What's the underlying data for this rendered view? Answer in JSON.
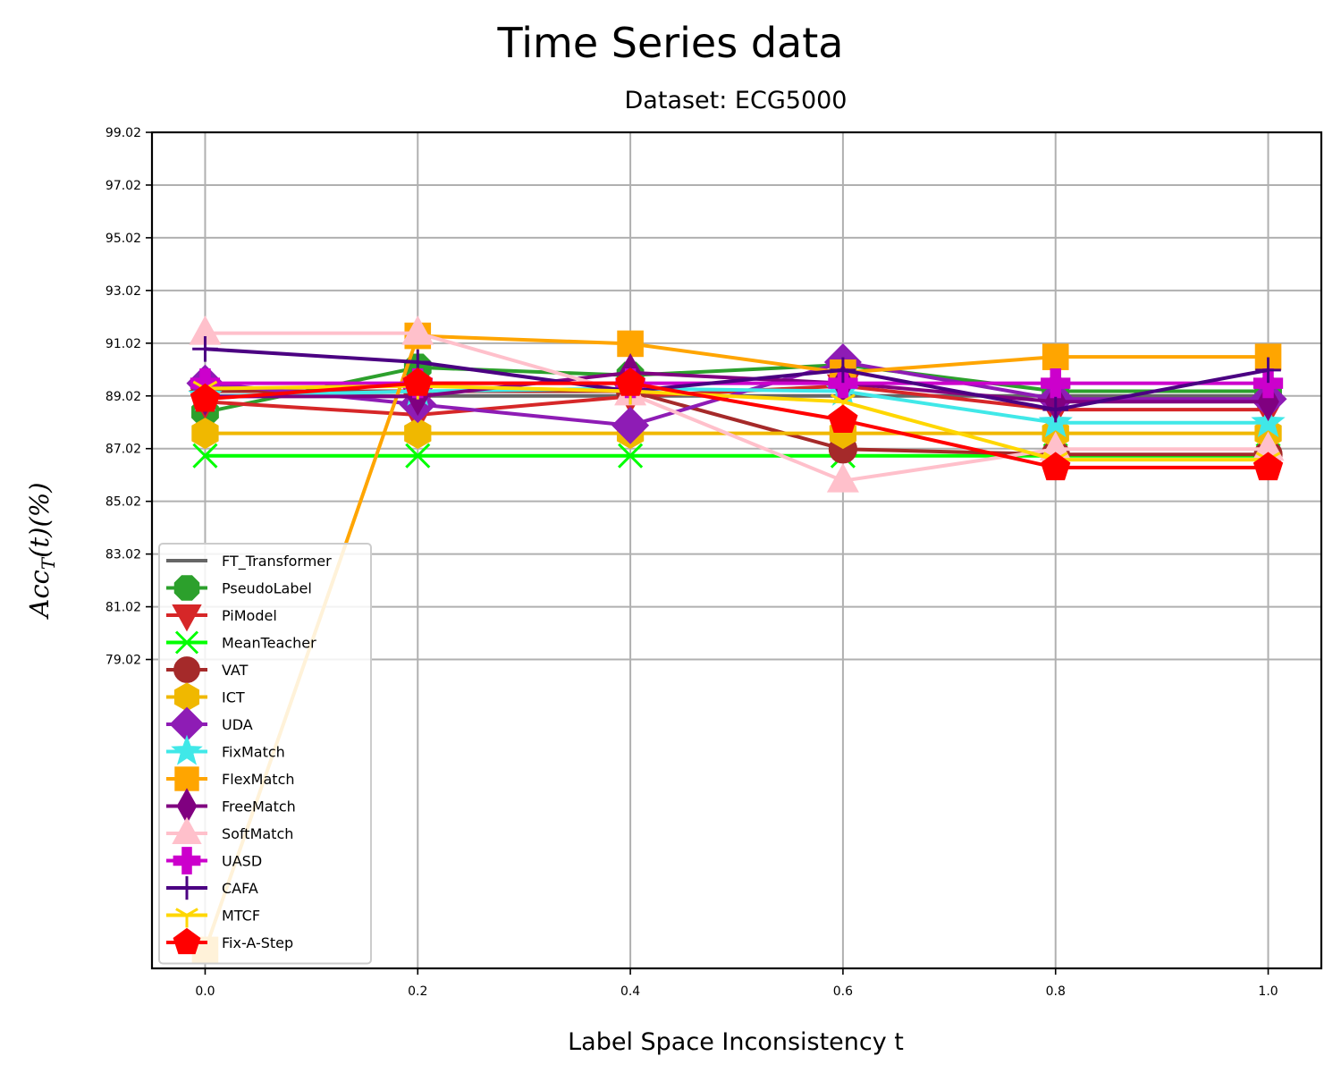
{
  "chart_data": {
    "type": "line",
    "title": "Time Series data",
    "subtitle": "Dataset: ECG5000",
    "xlabel": "Label Space Inconsistency t",
    "ylabel": "Acc_T(t)(%)",
    "x": [
      0.0,
      0.2,
      0.4,
      0.6,
      0.8,
      1.0
    ],
    "x_ticks": [
      "0.0",
      "0.2",
      "0.4",
      "0.6",
      "0.8",
      "1.0"
    ],
    "xlim": [
      -0.05,
      1.05
    ],
    "y_ticks": [
      "79.02",
      "81.02",
      "83.02",
      "85.02",
      "87.02",
      "89.02",
      "91.02",
      "93.02",
      "95.02",
      "97.02",
      "99.02"
    ],
    "ylim": [
      67.3,
      99.02
    ],
    "grid": true,
    "legend_position": "lower-left",
    "series": [
      {
        "name": "FT_Transformer",
        "color": "#666666",
        "marker": "none",
        "values": [
          89.02,
          89.02,
          89.02,
          89.02,
          89.02,
          89.02
        ]
      },
      {
        "name": "PseudoLabel",
        "color": "#2ca02c",
        "marker": "octagon",
        "values": [
          88.4,
          90.1,
          89.8,
          90.2,
          89.2,
          89.2
        ]
      },
      {
        "name": "PiModel",
        "color": "#d62728",
        "marker": "triangle-down",
        "values": [
          88.8,
          88.3,
          89.0,
          89.4,
          88.5,
          88.5
        ]
      },
      {
        "name": "MeanTeacher",
        "color": "#00ff00",
        "marker": "x",
        "values": [
          86.75,
          86.75,
          86.75,
          86.75,
          86.75,
          86.75
        ]
      },
      {
        "name": "VAT",
        "color": "#a52a2a",
        "marker": "circle",
        "values": [
          89.2,
          89.2,
          89.2,
          87.0,
          86.8,
          86.8
        ]
      },
      {
        "name": "ICT",
        "color": "#f0b800",
        "marker": "hexagon",
        "values": [
          87.6,
          87.6,
          87.6,
          87.6,
          87.6,
          87.6
        ]
      },
      {
        "name": "UDA",
        "color": "#8e1cb5",
        "marker": "diamond",
        "values": [
          89.5,
          88.7,
          87.9,
          90.3,
          88.9,
          88.9
        ]
      },
      {
        "name": "FixMatch",
        "color": "#40e8e8",
        "marker": "star",
        "values": [
          89.0,
          89.2,
          89.3,
          89.2,
          88.0,
          88.0
        ]
      },
      {
        "name": "FlexMatch",
        "color": "#ffa500",
        "marker": "square",
        "values": [
          68.0,
          91.3,
          91.0,
          89.9,
          90.5,
          90.5
        ]
      },
      {
        "name": "FreeMatch",
        "color": "#800080",
        "marker": "thin-diamond",
        "values": [
          89.0,
          89.0,
          89.9,
          89.5,
          88.8,
          88.8
        ]
      },
      {
        "name": "SoftMatch",
        "color": "#ffc0cb",
        "marker": "triangle-up",
        "values": [
          91.4,
          91.4,
          89.1,
          85.8,
          87.0,
          87.0
        ]
      },
      {
        "name": "UASD",
        "color": "#cc00cc",
        "marker": "plus-filled",
        "values": [
          89.5,
          89.5,
          89.5,
          89.5,
          89.5,
          89.5
        ]
      },
      {
        "name": "CAFA",
        "color": "#4b0082",
        "marker": "plus",
        "values": [
          90.8,
          90.3,
          89.2,
          90.0,
          88.5,
          90.0
        ]
      },
      {
        "name": "MTCF",
        "color": "#ffd700",
        "marker": "tri-down",
        "values": [
          89.3,
          89.4,
          89.2,
          88.8,
          86.6,
          86.6
        ]
      },
      {
        "name": "Fix-A-Step",
        "color": "#ff0000",
        "marker": "pentagon",
        "values": [
          88.9,
          89.5,
          89.5,
          88.1,
          86.3,
          86.3
        ]
      }
    ]
  }
}
